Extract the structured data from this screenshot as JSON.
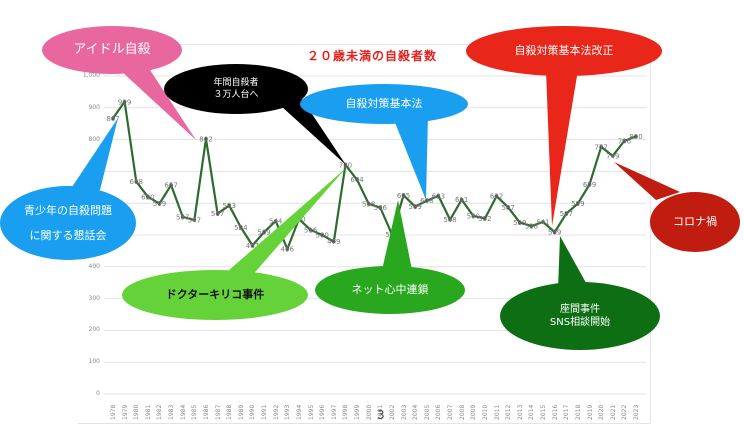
{
  "chart_data": {
    "type": "line",
    "title": "２０歳未満の自殺者数",
    "xlabel": "",
    "ylabel": "",
    "ylim": [
      0,
      1000
    ],
    "yticks": [
      "0",
      "100",
      "200",
      "300",
      "400",
      "500",
      "600",
      "700",
      "800",
      "900",
      "1,000"
    ],
    "grid": true,
    "legend": "none",
    "categories": [
      "1978",
      "1979",
      "1980",
      "1981",
      "1982",
      "1983",
      "1984",
      "1985",
      "1986",
      "1987",
      "1988",
      "1989",
      "1990",
      "1991",
      "1992",
      "1993",
      "1994",
      "1995",
      "1996",
      "1997",
      "1998",
      "1999",
      "2000",
      "2001",
      "2002",
      "2003",
      "2004",
      "2005",
      "2006",
      "2007",
      "2008",
      "2009",
      "2010",
      "2011",
      "2012",
      "2013",
      "2014",
      "2015",
      "2016",
      "2017",
      "2018",
      "2019",
      "2020",
      "2021",
      "2022",
      "2023"
    ],
    "series": [
      {
        "name": "20歳未満の自殺者数",
        "color": "#2e6b2e",
        "values": [
          867,
          919,
          668,
          620,
          599,
          657,
          557,
          547,
          802,
          567,
          593,
          524,
          467,
          509,
          544,
          456,
          550,
          516,
          500,
          479,
          720,
          674,
          598,
          586,
          502,
          625,
          589,
          608,
          623,
          548,
          611,
          560,
          552,
          622,
          587,
          539,
          528,
          541,
          509,
          567,
          599,
          659,
          777,
          749,
          796,
          810
        ]
      }
    ],
    "annotations": [
      {
        "text": "アイドル自殺",
        "year": "1986"
      },
      {
        "text": "青少年の自殺問題\nに関する懇話会",
        "year": "1978"
      },
      {
        "text": "年間自殺者\n３万人台へ",
        "year": "1998"
      },
      {
        "text": "ドクターキリコ事件",
        "year": "1998"
      },
      {
        "text": "自殺対策基本法",
        "year": "2005"
      },
      {
        "text": "ネット心中連鎖",
        "year": "2003"
      },
      {
        "text": "自殺対策基本法改正",
        "year": "2016"
      },
      {
        "text": "座間事件\nSNS相談開始",
        "year": "2017"
      },
      {
        "text": "コロナ禍",
        "year": "2021"
      }
    ]
  },
  "page": {
    "title": "２０歳未満の自殺者数",
    "page_number": "3"
  },
  "callouts": {
    "idol": {
      "line1": "アイドル自殺",
      "color": "#e8679e"
    },
    "council": {
      "line1": "青少年の自殺問題",
      "line2": "に関する懇話会",
      "color": "#1a9ff0"
    },
    "annual": {
      "line1": "年間自殺者",
      "line2": "３万人台へ",
      "color": "#000000"
    },
    "kiriko": {
      "line1": "ドクターキリコ事件",
      "color": "#66d23a"
    },
    "basic_law": {
      "line1": "自殺対策基本法",
      "color": "#1a9ff0"
    },
    "net": {
      "line1": "ネット心中連鎖",
      "color": "#29a81f"
    },
    "law_revision": {
      "line1": "自殺対策基本法改正",
      "color": "#e8261a"
    },
    "zama": {
      "line1": "座間事件",
      "line2": "SNS相談開始",
      "color": "#0e6e14"
    },
    "corona": {
      "line1": "コロナ禍",
      "color": "#c01c10"
    }
  }
}
